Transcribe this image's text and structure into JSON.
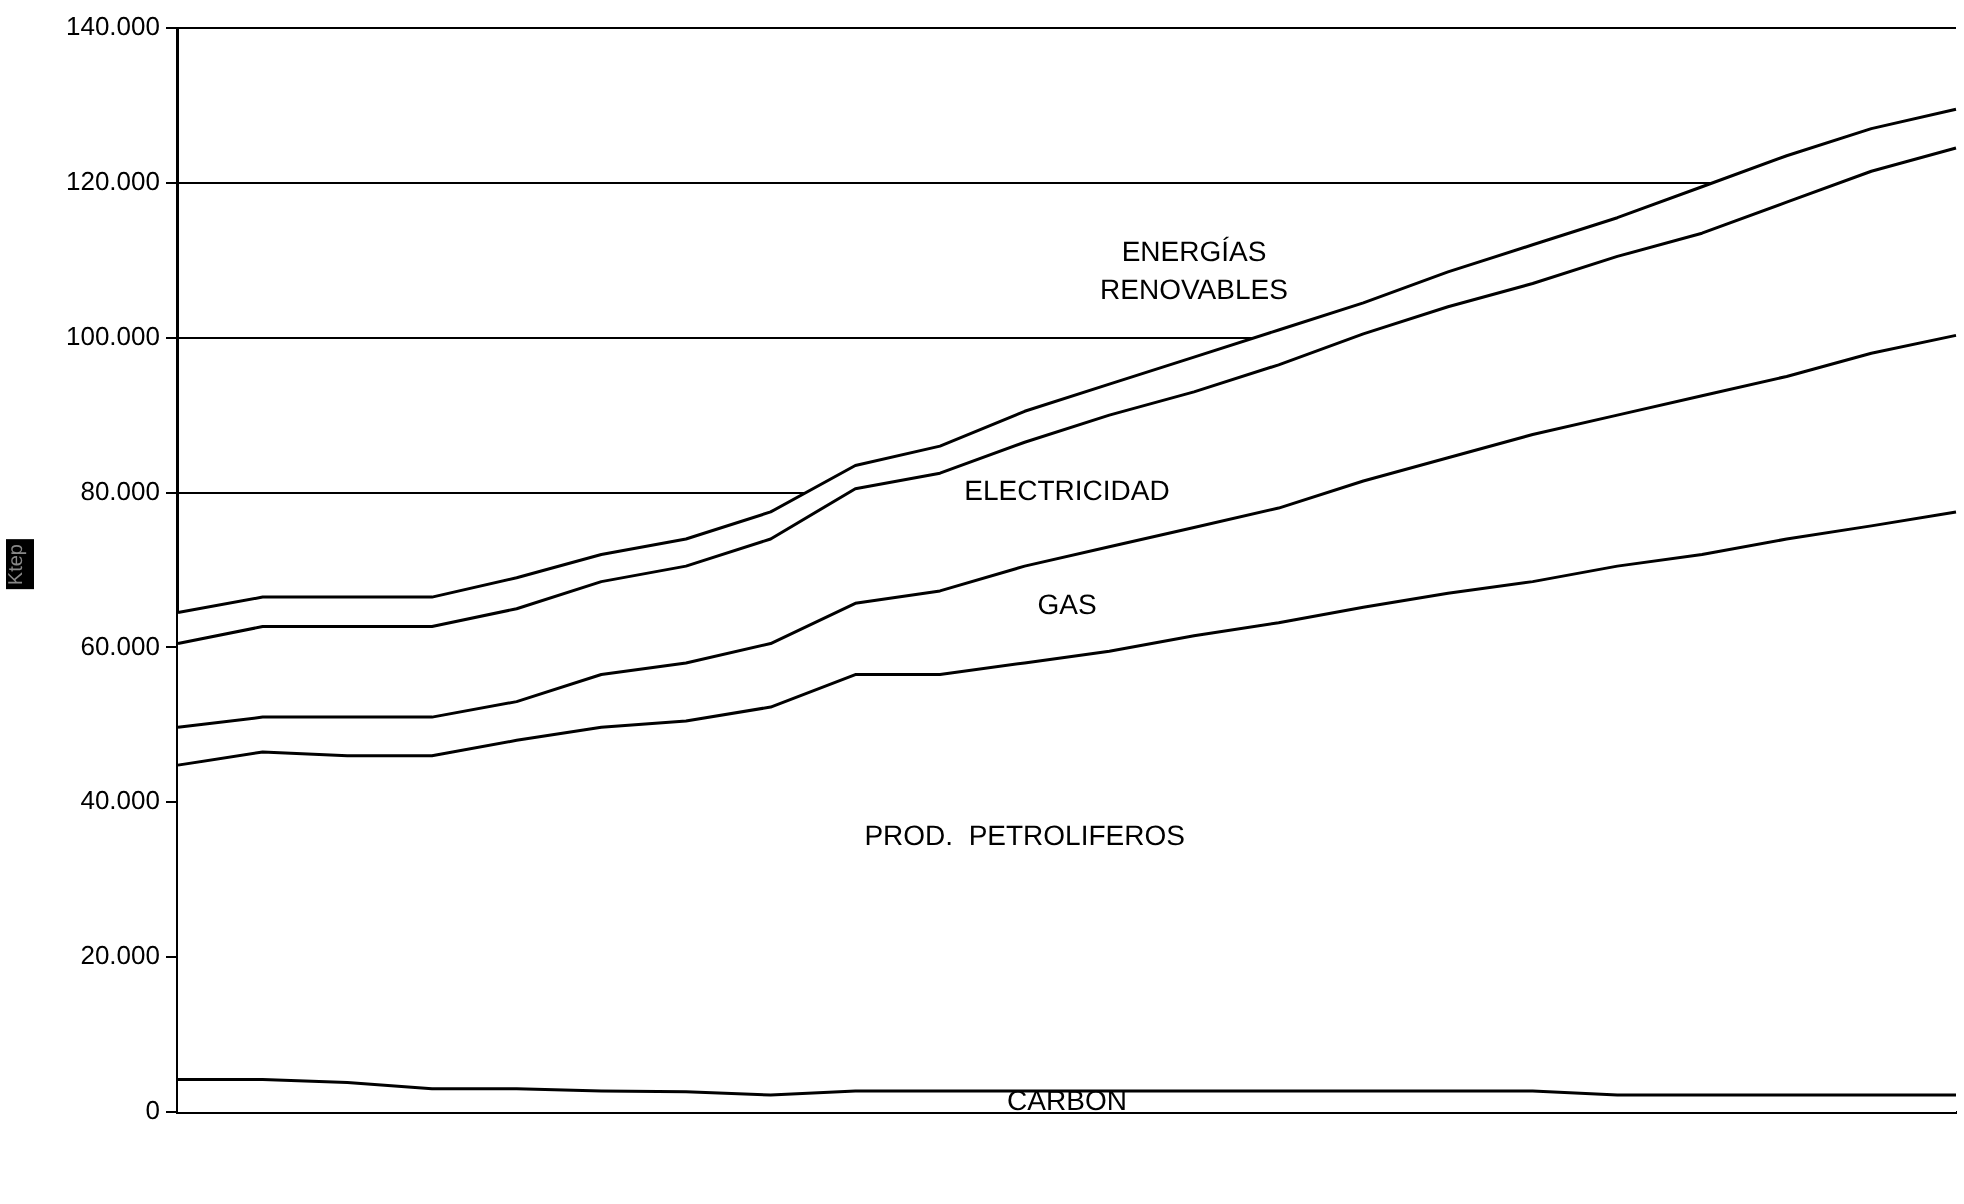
{
  "chart_data": {
    "type": "area",
    "stacked": true,
    "ylabel": "Ktep",
    "categories": [
      null,
      null,
      null,
      null,
      null,
      null,
      null,
      null,
      null,
      null,
      null,
      null,
      null,
      null,
      null,
      null,
      null,
      null,
      null,
      null,
      null,
      null
    ],
    "series": [
      {
        "name": "CARBON",
        "color": "#000000",
        "values": [
          4200,
          4200,
          3800,
          3000,
          3000,
          2700,
          2600,
          2200,
          2700,
          2700,
          2700,
          2700,
          2700,
          2700,
          2700,
          2700,
          2700,
          2200,
          2200,
          2200,
          2200,
          2200
        ]
      },
      {
        "name": "PROD.  PETROLIFEROS",
        "color": "#000000",
        "values": [
          40600,
          42300,
          42200,
          43000,
          45000,
          47000,
          47900,
          50100,
          53800,
          53800,
          55300,
          56800,
          58800,
          60500,
          62500,
          64300,
          65800,
          68300,
          69800,
          71800,
          73500,
          75300
        ]
      },
      {
        "name": "GAS",
        "color": "#000000",
        "values": [
          4900,
          4500,
          5000,
          5000,
          5000,
          6800,
          7500,
          8200,
          9200,
          10800,
          12500,
          13500,
          14000,
          14800,
          16300,
          17500,
          19000,
          19500,
          20500,
          21000,
          22300,
          22800
        ]
      },
      {
        "name": "ELECTRICIDAD",
        "color": "#000000",
        "values": [
          10800,
          11700,
          11700,
          11700,
          12000,
          12000,
          12500,
          13500,
          14800,
          15200,
          16000,
          17000,
          17500,
          18500,
          19000,
          19500,
          19500,
          20500,
          21000,
          22500,
          23500,
          24200
        ]
      },
      {
        "name": "ENERGÍAS RENOVABLES",
        "color": "#000000",
        "values": [
          4000,
          3800,
          3800,
          3800,
          4000,
          3500,
          3500,
          3500,
          3000,
          3500,
          4000,
          4000,
          4500,
          4500,
          4000,
          4500,
          5000,
          5000,
          6000,
          6000,
          5500,
          5000
        ]
      }
    ],
    "ylim": [
      0,
      140000
    ],
    "yticks": [
      {
        "value": 0,
        "label": "0"
      },
      {
        "value": 20000,
        "label": "20.000"
      },
      {
        "value": 40000,
        "label": "40.000"
      },
      {
        "value": 60000,
        "label": "60.000"
      },
      {
        "value": 80000,
        "label": "80.000"
      },
      {
        "value": 100000,
        "label": "100.000"
      },
      {
        "value": 120000,
        "label": "120.000"
      },
      {
        "value": 140000,
        "label": "140.000"
      }
    ],
    "grid": "y",
    "tick_labels": "y",
    "legend": false
  }
}
